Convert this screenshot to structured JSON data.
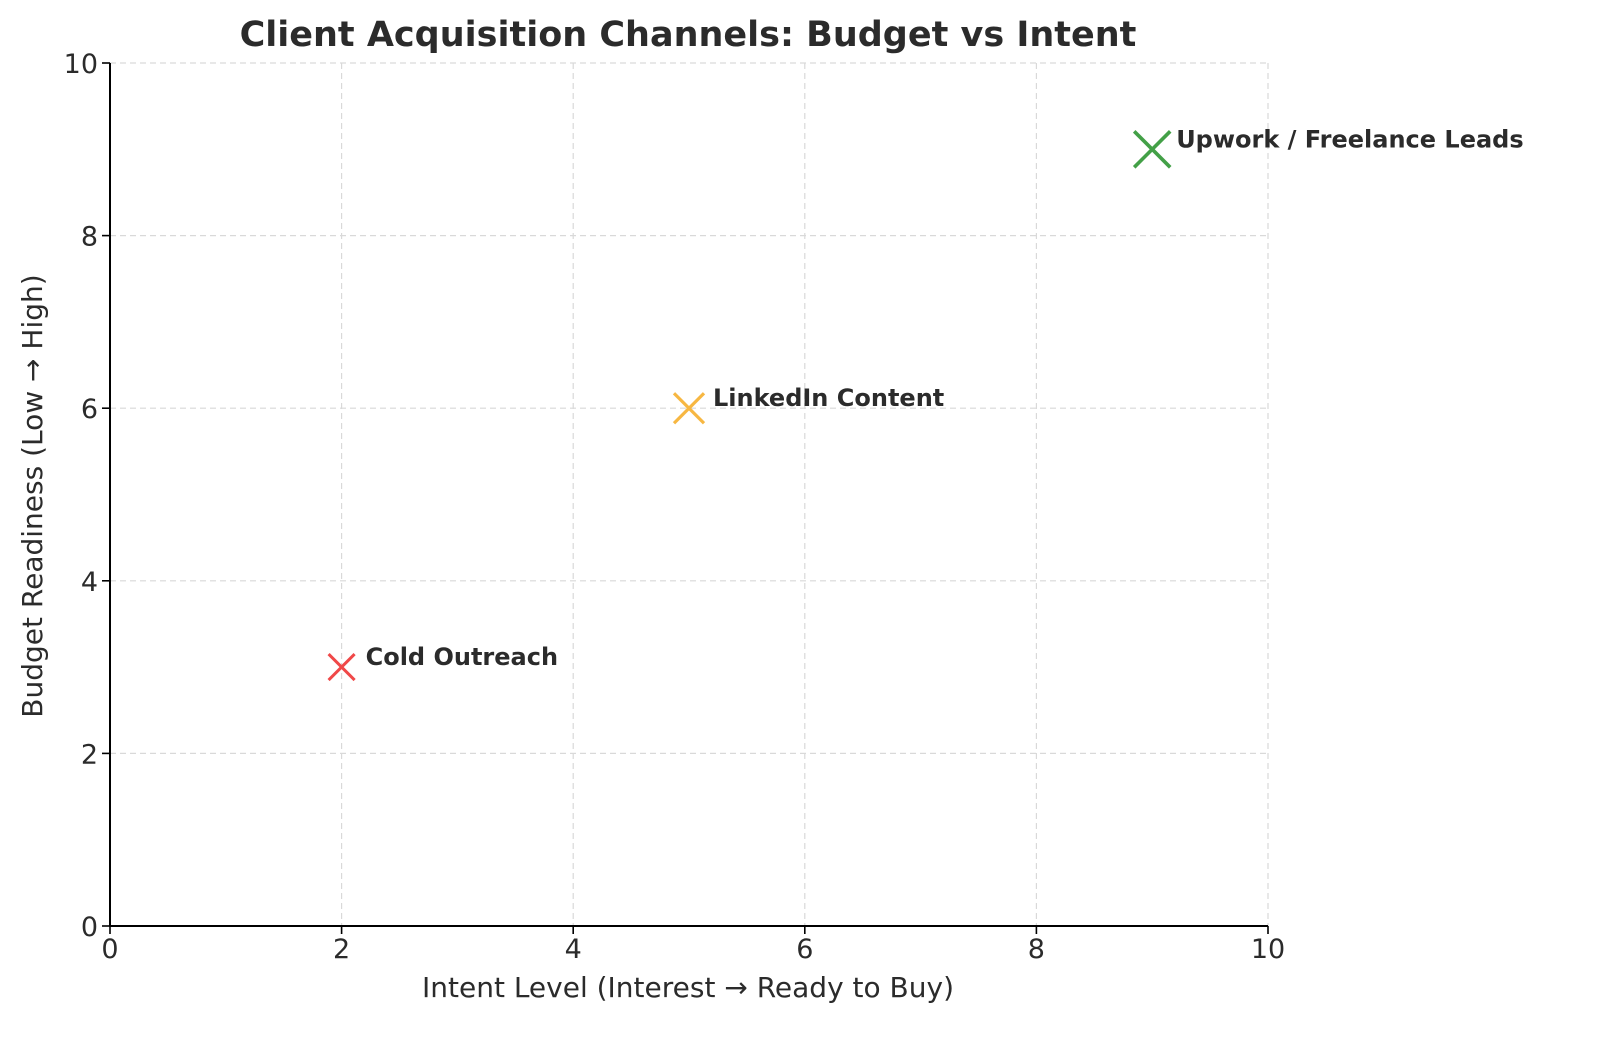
{
  "chart_data": {
    "type": "scatter",
    "title": "Client Acquisition Channels: Budget vs Intent",
    "xlabel": "Intent Level (Interest → Ready to Buy)",
    "ylabel": "Budget Readiness (Low → High)",
    "xlim": [
      0,
      10
    ],
    "ylim": [
      0,
      10
    ],
    "xticks": [
      "0",
      "2",
      "4",
      "6",
      "8",
      "10"
    ],
    "yticks": [
      "0",
      "2",
      "4",
      "6",
      "8",
      "10"
    ],
    "grid": true,
    "marker": "x",
    "points": [
      {
        "label": "Cold Outreach",
        "x": 2,
        "y": 3,
        "color": "#f04848",
        "size": "small"
      },
      {
        "label": "LinkedIn Content",
        "x": 5,
        "y": 6,
        "color": "#f7b742",
        "size": "medium"
      },
      {
        "label": "Upwork / Freelance Leads",
        "x": 9,
        "y": 9,
        "color": "#43a047",
        "size": "large"
      }
    ]
  }
}
